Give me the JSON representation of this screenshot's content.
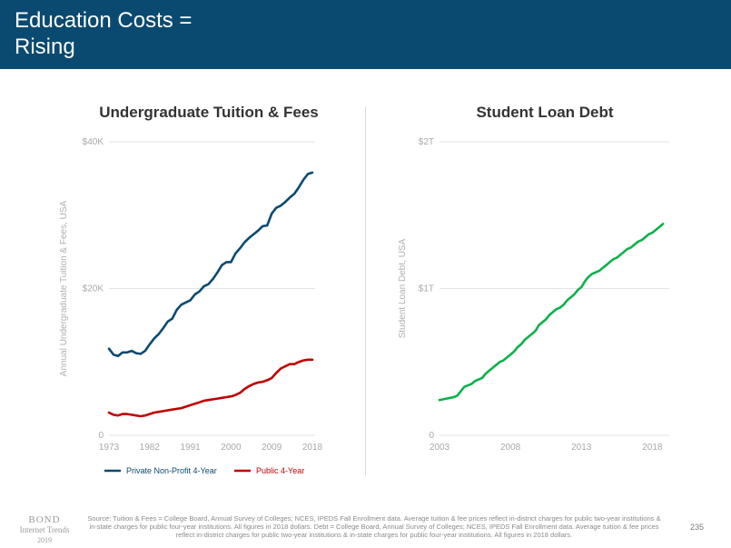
{
  "header": {
    "title": "Education Costs =\nRising",
    "background": "#0a4a70"
  },
  "chart_data": [
    {
      "type": "line",
      "title": "Undergraduate Tuition & Fees",
      "ylabel": "Annual Undergraduate Tuition & Fees, USA",
      "xlabel": "",
      "xlim": [
        1973,
        2018
      ],
      "ylim": [
        0,
        40000
      ],
      "xticks": [
        1973,
        1982,
        1991,
        2000,
        2009,
        2018
      ],
      "yticks": [
        0,
        20000,
        40000
      ],
      "ytick_labels": [
        "0",
        "$20K",
        "$40K"
      ],
      "grid": true,
      "legend_position": "bottom",
      "x": [
        1973,
        1974,
        1975,
        1976,
        1977,
        1978,
        1979,
        1980,
        1981,
        1982,
        1983,
        1984,
        1985,
        1986,
        1987,
        1988,
        1989,
        1990,
        1991,
        1992,
        1993,
        1994,
        1995,
        1996,
        1997,
        1998,
        1999,
        2000,
        2001,
        2002,
        2003,
        2004,
        2005,
        2006,
        2007,
        2008,
        2009,
        2010,
        2011,
        2012,
        2013,
        2014,
        2015,
        2016,
        2017,
        2018
      ],
      "series": [
        {
          "name": "Private Non-Profit 4-Year",
          "color": "#0a4a70",
          "values": [
            11800,
            11000,
            10800,
            11300,
            11300,
            11500,
            11200,
            11100,
            11500,
            12400,
            13200,
            13800,
            14600,
            15500,
            15900,
            17100,
            17800,
            18100,
            18400,
            19200,
            19600,
            20300,
            20600,
            21300,
            22200,
            23200,
            23600,
            23600,
            24800,
            25500,
            26300,
            26900,
            27400,
            27900,
            28500,
            28600,
            30200,
            31000,
            31300,
            31800,
            32400,
            32900,
            33800,
            34800,
            35600,
            35800
          ]
        },
        {
          "name": "Public 4-Year",
          "color": "#c00000",
          "values": [
            3100,
            2800,
            2700,
            2900,
            2900,
            2800,
            2700,
            2600,
            2700,
            2900,
            3100,
            3200,
            3300,
            3400,
            3500,
            3600,
            3700,
            3900,
            4100,
            4300,
            4500,
            4700,
            4800,
            4900,
            5000,
            5100,
            5200,
            5300,
            5500,
            5800,
            6300,
            6700,
            7000,
            7200,
            7300,
            7500,
            7800,
            8500,
            9100,
            9400,
            9700,
            9700,
            10000,
            10200,
            10300,
            10300
          ]
        }
      ]
    },
    {
      "type": "line",
      "title": "Student Loan Debt",
      "ylabel": "Student Loan Debt, USA",
      "xlabel": "",
      "xlim": [
        2003,
        2019
      ],
      "ylim": [
        0,
        2
      ],
      "xticks": [
        2003,
        2008,
        2013,
        2018
      ],
      "yticks": [
        0,
        1,
        2
      ],
      "ytick_labels": [
        "0",
        "$1T",
        "$2T"
      ],
      "grid": true,
      "x": [
        2003,
        2003.25,
        2003.5,
        2003.75,
        2004,
        2004.25,
        2004.5,
        2004.75,
        2005,
        2005.25,
        2005.5,
        2005.75,
        2006,
        2006.25,
        2006.5,
        2006.75,
        2007,
        2007.25,
        2007.5,
        2007.75,
        2008,
        2008.25,
        2008.5,
        2008.75,
        2009,
        2009.25,
        2009.5,
        2009.75,
        2010,
        2010.25,
        2010.5,
        2010.75,
        2011,
        2011.25,
        2011.5,
        2011.75,
        2012,
        2012.25,
        2012.5,
        2012.75,
        2013,
        2013.25,
        2013.5,
        2013.75,
        2014,
        2014.25,
        2014.5,
        2014.75,
        2015,
        2015.25,
        2015.5,
        2015.75,
        2016,
        2016.25,
        2016.5,
        2016.75,
        2017,
        2017.25,
        2017.5,
        2017.75,
        2018,
        2018.25,
        2018.5,
        2018.75
      ],
      "series": [
        {
          "name": "",
          "color": "#0db14b",
          "values": [
            0.24,
            0.245,
            0.25,
            0.255,
            0.26,
            0.27,
            0.3,
            0.33,
            0.34,
            0.35,
            0.37,
            0.38,
            0.39,
            0.42,
            0.44,
            0.46,
            0.48,
            0.5,
            0.51,
            0.53,
            0.55,
            0.57,
            0.6,
            0.62,
            0.65,
            0.67,
            0.69,
            0.71,
            0.75,
            0.77,
            0.79,
            0.82,
            0.84,
            0.86,
            0.87,
            0.89,
            0.92,
            0.94,
            0.96,
            0.99,
            1.01,
            1.05,
            1.08,
            1.1,
            1.11,
            1.12,
            1.14,
            1.16,
            1.18,
            1.2,
            1.21,
            1.23,
            1.25,
            1.27,
            1.28,
            1.3,
            1.32,
            1.33,
            1.35,
            1.37,
            1.38,
            1.4,
            1.42,
            1.44
          ]
        }
      ]
    }
  ],
  "footer": {
    "logo_line1": "BOND",
    "logo_line2": "Internet Trends",
    "logo_line3": "2019",
    "source": "Source: Tuition & Fees = College Board, Annual Survey of Colleges; NCES, IPEDS Fall Enrollment data. Average tuition & fee prices reflect in-district charges for public two-year institutions & in-state charges for public four-year institutions. All figures in 2018 dollars.  Debt = College Board, Annual Survey of Colleges; NCES, IPEDS Fall Enrollment data. Average tuition & fee prices reflect in-district charges for public two-year institutions & in-state charges for public four-year institutions. All figures in 2018 dollars.",
    "page_number": "235"
  }
}
